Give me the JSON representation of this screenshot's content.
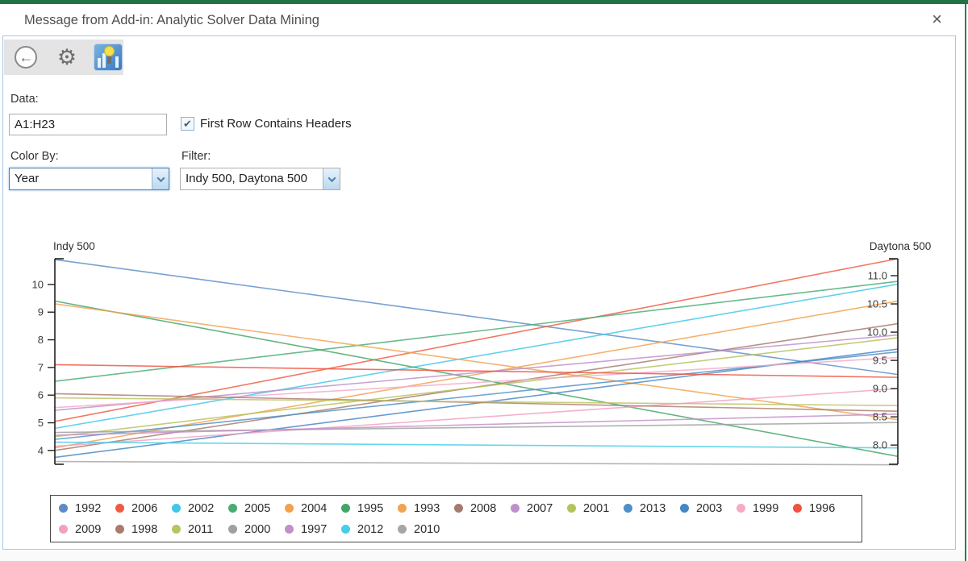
{
  "window": {
    "title": "Message from Add-in: Analytic Solver Data Mining",
    "close_glyph": "×"
  },
  "toolbar": {
    "back_glyph": "←",
    "gear_glyph": "⚙"
  },
  "form": {
    "data_label": "Data:",
    "data_value": "A1:H23",
    "first_row_label": "First Row Contains Headers",
    "first_row_checked": true,
    "check_glyph": "✔",
    "color_by_label": "Color By:",
    "color_by_value": "Year",
    "filter_label": "Filter:",
    "filter_value": "Indy 500, Daytona 500"
  },
  "chart_data": {
    "type": "parallel-coordinates",
    "axes": [
      {
        "label": "Indy 500",
        "min": 3.5,
        "max": 10.93,
        "ticks": [
          4,
          5,
          6,
          7,
          8,
          9,
          10
        ],
        "tick_decimals": 0
      },
      {
        "label": "Daytona 500",
        "min": 7.66,
        "max": 11.3,
        "ticks": [
          8.0,
          8.5,
          9.0,
          9.5,
          10.0,
          10.5,
          11.0
        ],
        "tick_decimals": 1
      }
    ],
    "series": [
      {
        "year": "1992",
        "color": "#5a8dc8",
        "indy_500": 10.9,
        "daytona_500": 9.25
      },
      {
        "year": "2006",
        "color": "#ef5b42",
        "indy_500": 5.05,
        "daytona_500": 11.3
      },
      {
        "year": "2002",
        "color": "#41c7e8",
        "indy_500": 4.8,
        "daytona_500": 10.85
      },
      {
        "year": "2005",
        "color": "#47ad73",
        "indy_500": 6.5,
        "daytona_500": 10.9
      },
      {
        "year": "2004",
        "color": "#f3a14e",
        "indy_500": 4.1,
        "daytona_500": 10.55
      },
      {
        "year": "1995",
        "color": "#43a566",
        "indy_500": 9.4,
        "daytona_500": 7.8
      },
      {
        "year": "1993",
        "color": "#f0a351",
        "indy_500": 9.3,
        "daytona_500": 8.45
      },
      {
        "year": "2008",
        "color": "#a57a6d",
        "indy_500": 4.0,
        "daytona_500": 10.15
      },
      {
        "year": "2007",
        "color": "#bd90cb",
        "indy_500": 5.45,
        "daytona_500": 9.95
      },
      {
        "year": "2001",
        "color": "#b6c25e",
        "indy_500": 4.5,
        "daytona_500": 9.9
      },
      {
        "year": "2013",
        "color": "#4d8fc6",
        "indy_500": 4.4,
        "daytona_500": 9.65
      },
      {
        "year": "2003",
        "color": "#4587c4",
        "indy_500": 3.75,
        "daytona_500": 9.7
      },
      {
        "year": "1999",
        "color": "#f5abc8",
        "indy_500": 5.55,
        "daytona_500": 9.55
      },
      {
        "year": "1996",
        "color": "#f05340",
        "indy_500": 7.1,
        "daytona_500": 9.2
      },
      {
        "year": "2009",
        "color": "#f49fc2",
        "indy_500": 4.15,
        "daytona_500": 9.0
      },
      {
        "year": "1998",
        "color": "#ac7b6e",
        "indy_500": 6.05,
        "daytona_500": 8.6
      },
      {
        "year": "2011",
        "color": "#bac364",
        "indy_500": 5.9,
        "daytona_500": 8.7
      },
      {
        "year": "2000",
        "color": "#a0a0a0",
        "indy_500": 4.65,
        "daytona_500": 8.4
      },
      {
        "year": "1997",
        "color": "#c38fc7",
        "indy_500": 4.55,
        "daytona_500": 8.55
      },
      {
        "year": "2012",
        "color": "#46cdea",
        "indy_500": 4.3,
        "daytona_500": 7.95
      },
      {
        "year": "2010",
        "color": "#a6a6a6",
        "indy_500": 3.6,
        "daytona_500": 7.65
      }
    ],
    "legend_position": "bottom"
  }
}
